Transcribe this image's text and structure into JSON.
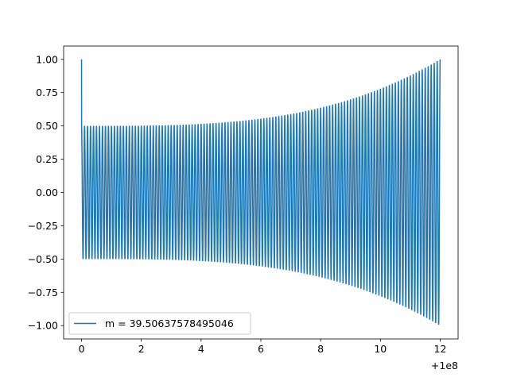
{
  "chart_data": {
    "type": "line",
    "title": "",
    "xlabel": "",
    "ylabel": "",
    "x_offset_label": "+1e8",
    "xlim": [
      -0.6,
      12.6
    ],
    "ylim": [
      -1.1,
      1.1
    ],
    "x_ticks": [
      0,
      2,
      4,
      6,
      8,
      10,
      12
    ],
    "x_tick_labels": [
      "0",
      "2",
      "4",
      "6",
      "8",
      "10",
      "12"
    ],
    "y_ticks": [
      -1.0,
      -0.75,
      -0.5,
      -0.25,
      0.0,
      0.25,
      0.5,
      0.75,
      1.0
    ],
    "y_tick_labels": [
      "−1.00",
      "−0.75",
      "−0.50",
      "−0.25",
      "0.00",
      "0.25",
      "0.50",
      "0.75",
      "1.00"
    ],
    "grid": false,
    "legend_position": "lower-left",
    "series": [
      {
        "name": "m = 39.50637578495046",
        "color": "#1f77b4",
        "x_range": [
          0,
          12
        ],
        "start_value": 1.0,
        "amplitude_start": 0.5,
        "amplitude_end": 1.0,
        "cycles": 120
      }
    ]
  }
}
